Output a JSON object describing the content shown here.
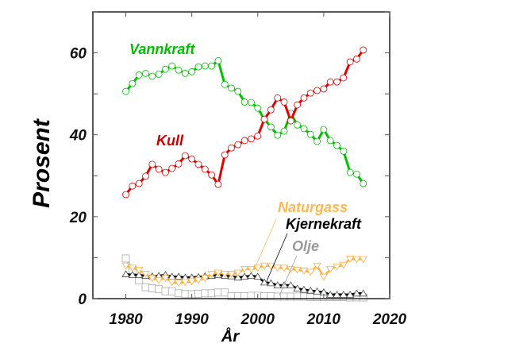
{
  "chart_data": {
    "type": "line",
    "xlabel": "År",
    "ylabel": "Prosent",
    "xlim": [
      1975,
      2020
    ],
    "ylim": [
      0,
      70
    ],
    "xticks": [
      1980,
      1990,
      2000,
      2010,
      2020
    ],
    "yticks": [
      0,
      20,
      40,
      60
    ],
    "grid": false,
    "x": [
      1980,
      1981,
      1982,
      1983,
      1984,
      1985,
      1986,
      1987,
      1988,
      1989,
      1990,
      1991,
      1992,
      1993,
      1994,
      1995,
      1996,
      1997,
      1998,
      1999,
      2000,
      2001,
      2002,
      2003,
      2004,
      2005,
      2006,
      2007,
      2008,
      2009,
      2010,
      2011,
      2012,
      2013,
      2014,
      2015,
      2016
    ],
    "series": [
      {
        "name": "Vannkraft",
        "color": "#00c000",
        "marker": "circle",
        "values": [
          50.6,
          52.5,
          54.6,
          55,
          54.3,
          54.8,
          56,
          56.8,
          55.8,
          55,
          55.4,
          56.6,
          56.8,
          56.8,
          58.1,
          52.3,
          51.4,
          50.6,
          48,
          47.9,
          46.5,
          43.8,
          41.9,
          39.9,
          40.9,
          45.2,
          42.4,
          41.5,
          40.1,
          38.4,
          41.3,
          38.6,
          37.4,
          36,
          30.8,
          30.4,
          28.1
        ]
      },
      {
        "name": "Kull",
        "color": "#e00000",
        "marker": "circle",
        "label_color": "#cc0000",
        "values": [
          25.4,
          27.5,
          28.1,
          29.9,
          32.8,
          31.6,
          30.8,
          31.8,
          32.9,
          34.9,
          34.1,
          32.8,
          31.6,
          30.2,
          27.9,
          35.1,
          36.8,
          37.6,
          38.6,
          39,
          39.7,
          43.8,
          46.1,
          49,
          48,
          43.4,
          47.3,
          49,
          50.2,
          50.8,
          51.2,
          52.9,
          52.9,
          53.9,
          57.8,
          58.5,
          60.7
        ]
      },
      {
        "name": "Naturgass",
        "color": "#ffb040",
        "marker": "triangle-down",
        "values": [
          8,
          7.5,
          7,
          6,
          5,
          4.5,
          5,
          4,
          3.8,
          4,
          4.2,
          4.5,
          5,
          6,
          6.3,
          6,
          6,
          6.3,
          7.2,
          7.2,
          7.5,
          8,
          8,
          7.5,
          7.5,
          7.2,
          7,
          6.8,
          6.5,
          8,
          5.3,
          7.2,
          7.8,
          8.2,
          9.7,
          9.6,
          9.6
        ]
      },
      {
        "name": "Kjernekraft",
        "color": "#000000",
        "marker": "triangle-up",
        "values": [
          6,
          5.8,
          5.8,
          5.6,
          5.5,
          5.6,
          5.8,
          5.4,
          5.4,
          5.2,
          5.2,
          5.3,
          5.5,
          5.6,
          5.8,
          5.6,
          5.5,
          5.2,
          5.4,
          5.6,
          5.4,
          4,
          3.8,
          3.3,
          3.3,
          3.3,
          2.5,
          2.2,
          2,
          1.8,
          1.6,
          1,
          1,
          1,
          1,
          1.3,
          1.3
        ]
      },
      {
        "name": "Olje",
        "color": "#999999",
        "marker": "square",
        "values": [
          9.8,
          7,
          4.5,
          2.8,
          2.5,
          2.3,
          1.8,
          1.8,
          1.3,
          1.1,
          1.1,
          1.2,
          1.3,
          1.3,
          1.5,
          1.5,
          0.6,
          0.6,
          0.6,
          0.7,
          0.7,
          0.6,
          0.6,
          0.5,
          0.5,
          0.5,
          0.5,
          0.5,
          0.4,
          0.4,
          0.4,
          0.4,
          0.4,
          0.4,
          0.3,
          0.3,
          0.3
        ]
      }
    ]
  }
}
